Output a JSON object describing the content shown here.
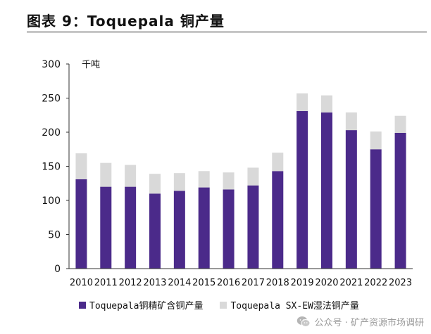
{
  "figure": {
    "title": "图表 9：Toquepala 铜产量"
  },
  "chart_data": {
    "type": "bar",
    "stacked": true,
    "unit_label": "千吨",
    "categories": [
      "2010",
      "2011",
      "2012",
      "2013",
      "2014",
      "2015",
      "2016",
      "2017",
      "2018",
      "2019",
      "2020",
      "2021",
      "2022",
      "2023"
    ],
    "series": [
      {
        "name": "Toquepala铜精矿含铜产量",
        "color": "#4b2a8a",
        "values": [
          131,
          120,
          120,
          110,
          114,
          119,
          116,
          122,
          143,
          231,
          229,
          203,
          175,
          199
        ]
      },
      {
        "name": "Toquepala SX-EW湿法铜产量",
        "color": "#d9d9d9",
        "values": [
          38,
          35,
          32,
          29,
          26,
          24,
          25,
          26,
          27,
          26,
          25,
          26,
          26,
          25
        ]
      }
    ],
    "ylim": [
      0,
      300
    ],
    "yticks": [
      0,
      50,
      100,
      150,
      200,
      250,
      300
    ],
    "grid": false,
    "legend_position": "bottom"
  },
  "watermark": {
    "text": "公众号 · 矿产资源市场调研"
  }
}
